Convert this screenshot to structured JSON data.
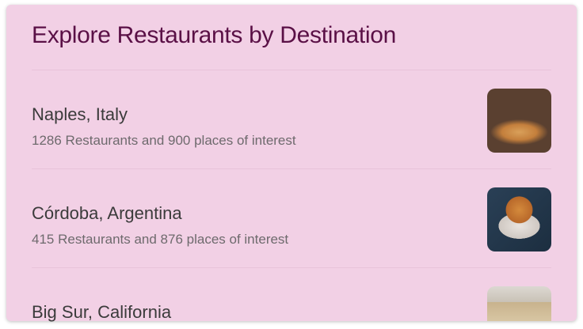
{
  "title": "Explore Restaurants by Destination",
  "destinations": [
    {
      "name": "Naples, Italy",
      "description": "1286 Restaurants and 900 places of interest",
      "image": "pizza-photo"
    },
    {
      "name": "Córdoba, Argentina",
      "description": "415 Restaurants and 876 places of interest",
      "image": "burger-photo"
    },
    {
      "name": "Big Sur, California",
      "description": "",
      "image": "tent-photo"
    }
  ]
}
